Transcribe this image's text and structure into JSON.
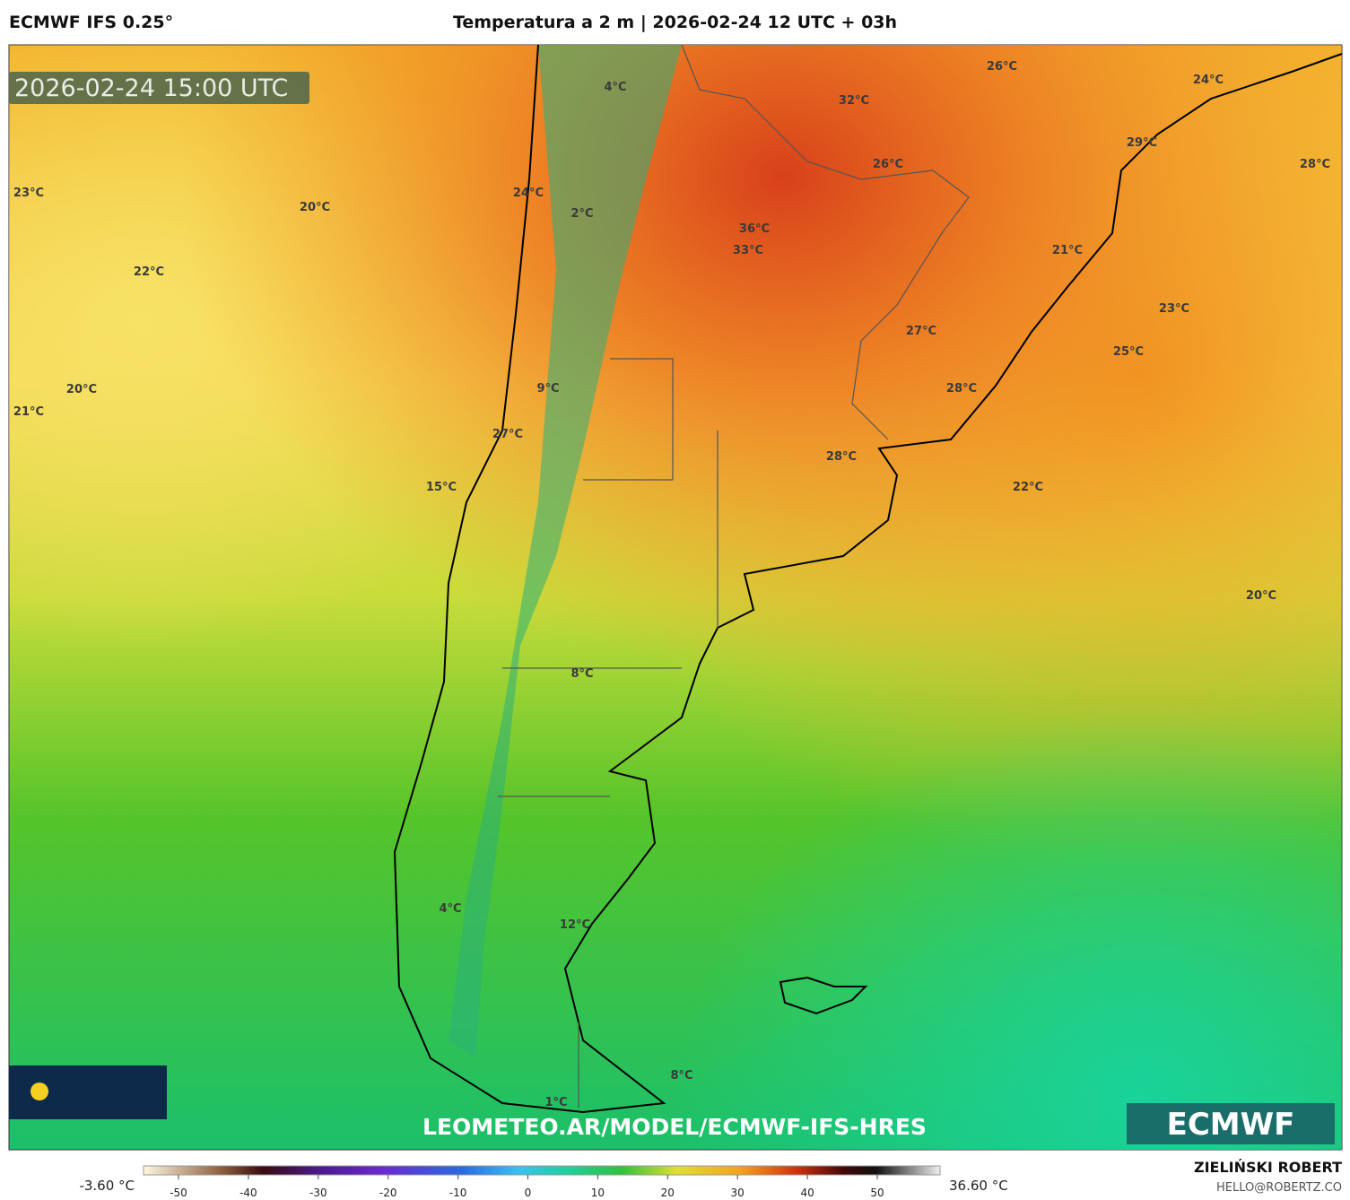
{
  "header": {
    "model": "ECMWF IFS 0.25°",
    "title": "Temperatura a 2 m | 2026-02-24 12 UTC + 03h"
  },
  "map": {
    "timestamp": "2026-02-24 15:00 UTC",
    "labels": [
      "4°C",
      "26°C",
      "24°C",
      "32°C",
      "29°C",
      "26°C",
      "28°C",
      "23°C",
      "24°C",
      "20°C",
      "2°C",
      "36°C",
      "33°C",
      "21°C",
      "22°C",
      "23°C",
      "27°C",
      "25°C",
      "20°C",
      "9°C",
      "28°C",
      "21°C",
      "27°C",
      "28°C",
      "15°C",
      "22°C",
      "20°C",
      "8°C",
      "4°C",
      "12°C",
      "8°C",
      "1°C"
    ],
    "url": "LEOMETEO.AR/MODEL/ECMWF-IFS-HRES",
    "logo": "ECMWF"
  },
  "colorbar": {
    "min_label": "-3.60 °C",
    "max_label": "36.60 °C",
    "ticks": [
      -50,
      -40,
      -30,
      -20,
      -10,
      0,
      10,
      20,
      30,
      40,
      50
    ]
  },
  "footer": {
    "author": "ZIELIŃSKI ROBERT",
    "contact": "HELLO@ROBERTZ.CO"
  }
}
